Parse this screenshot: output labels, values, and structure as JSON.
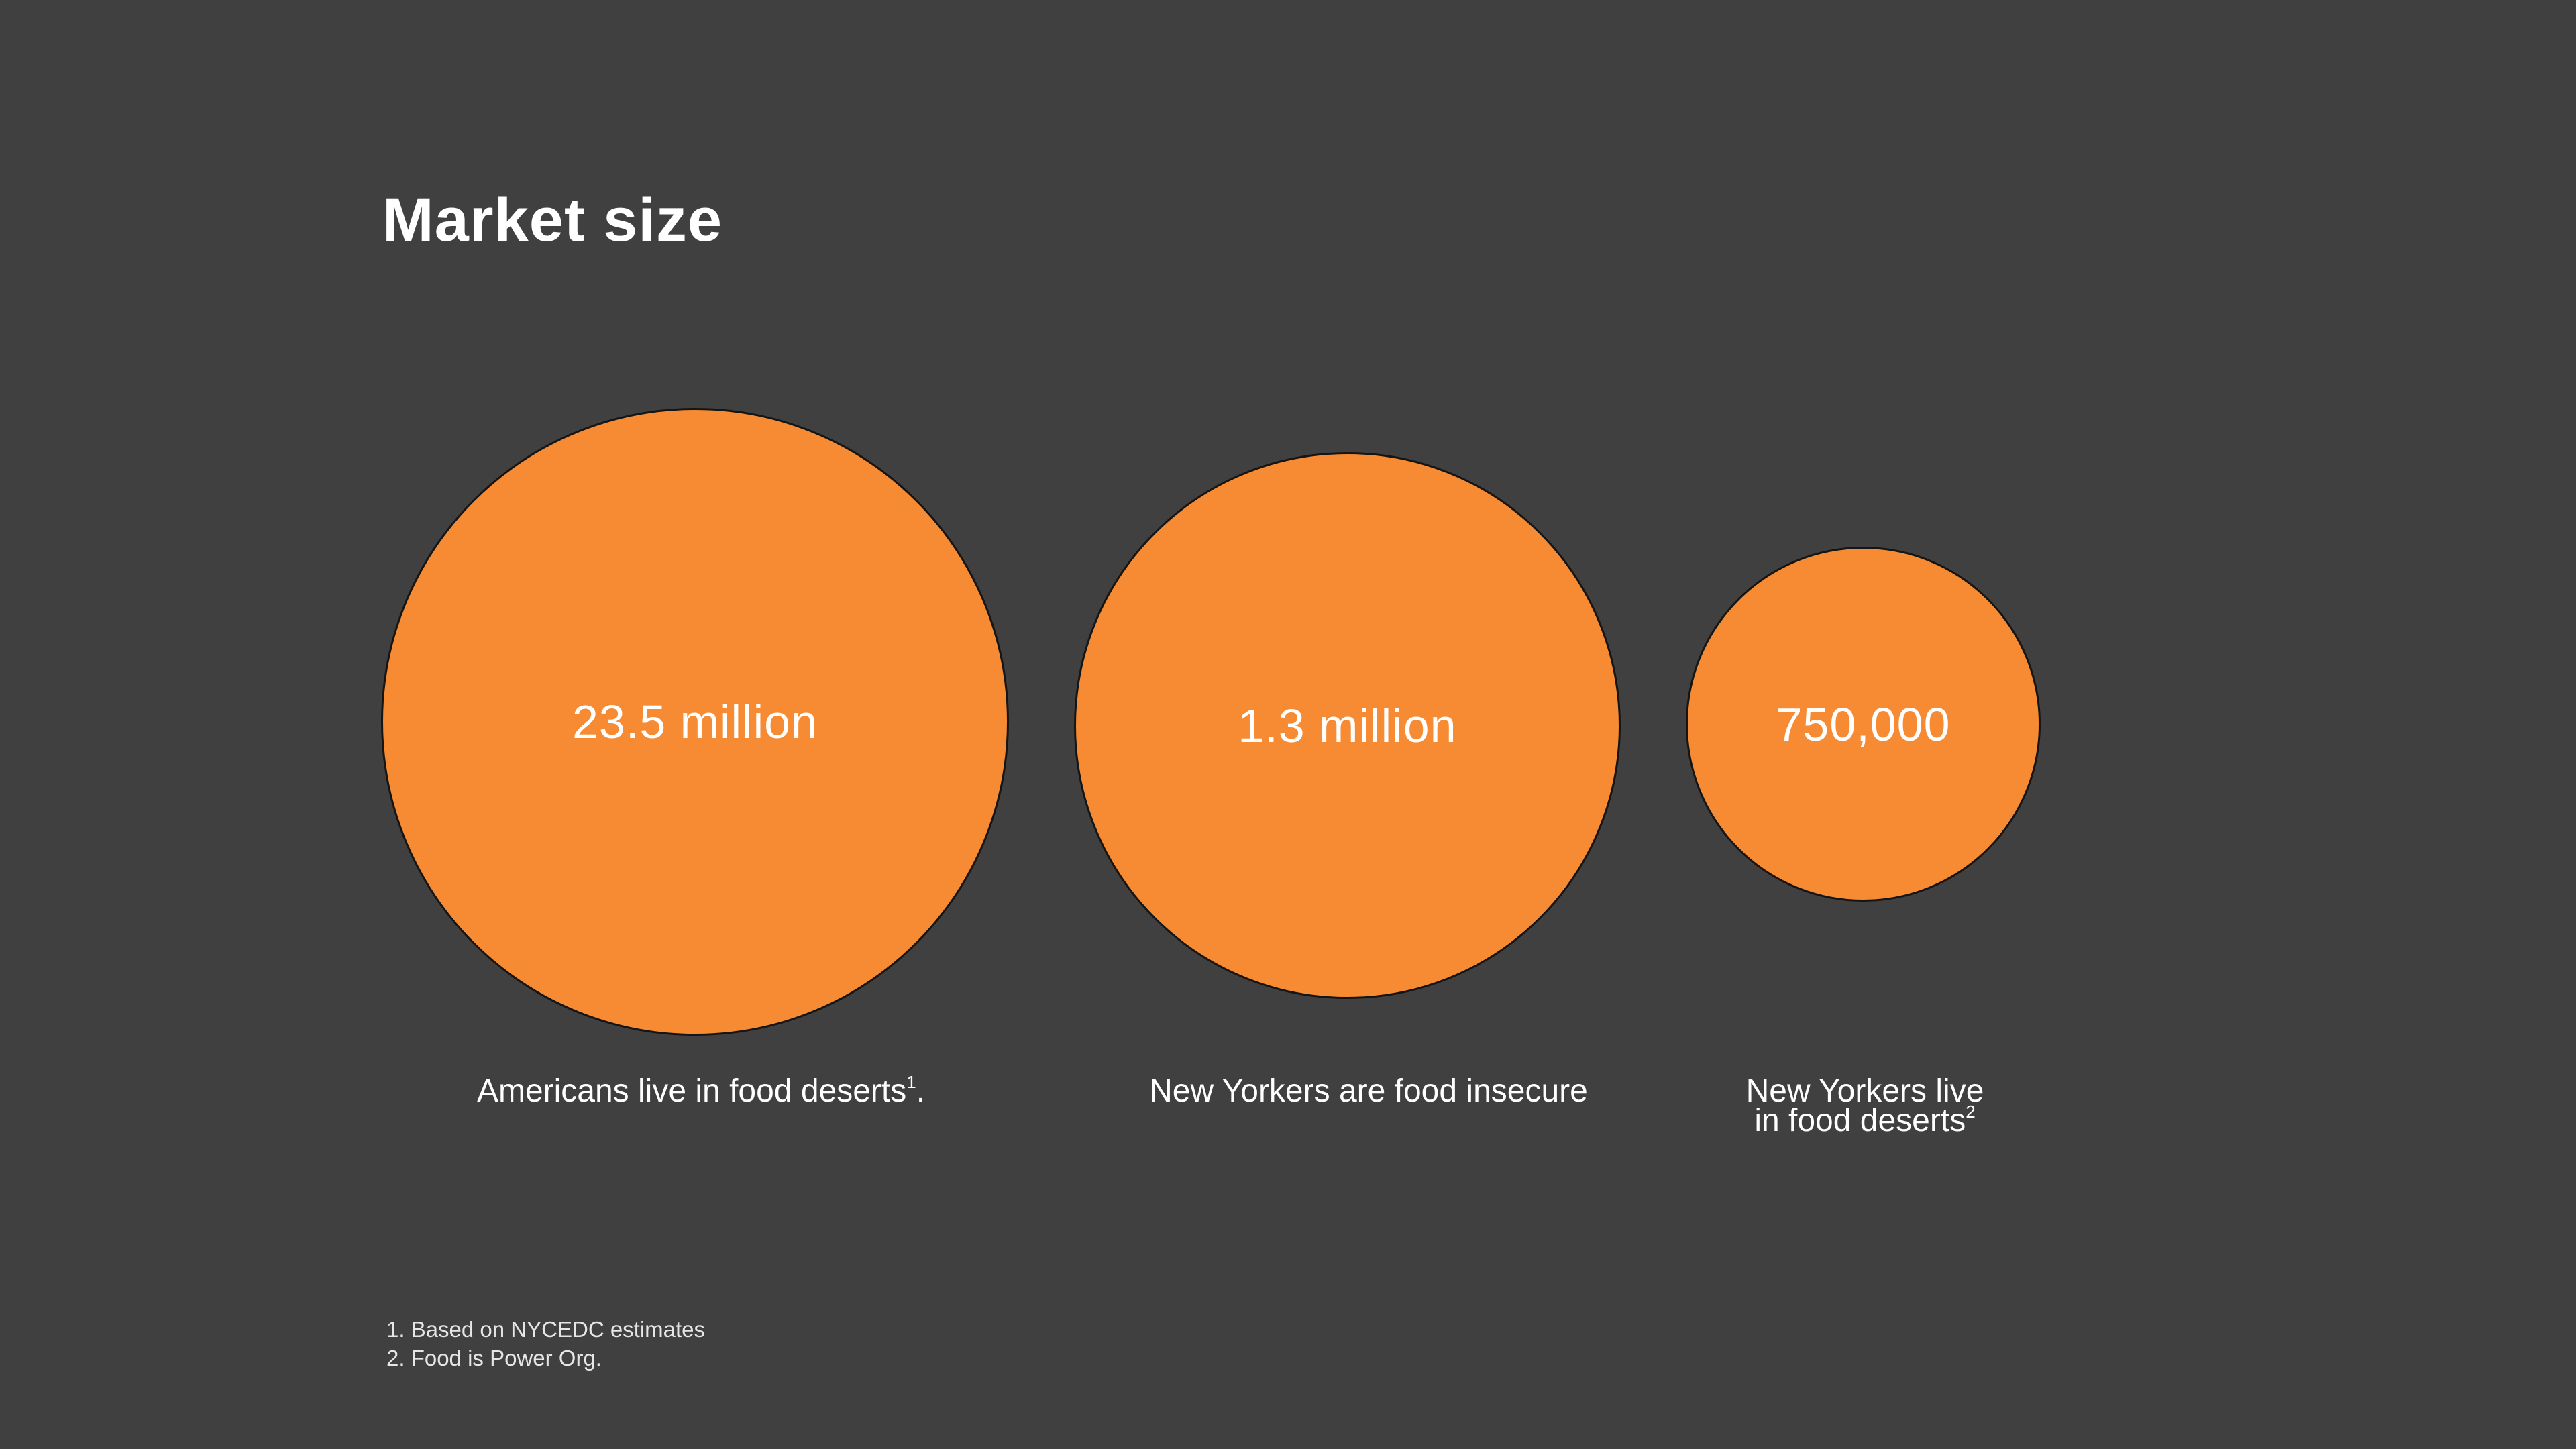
{
  "slide": {
    "title": "Market size",
    "colors": {
      "background": "#404040",
      "circle_fill": "#f68b33",
      "circle_stroke": "#151515",
      "text": "#ffffff"
    }
  },
  "stats": [
    {
      "value": "23.5 million",
      "caption": "Americans live in food deserts",
      "caption_sup": "1",
      "caption_tail": "."
    },
    {
      "value": "1.3 million",
      "caption": "New Yorkers are food insecure"
    },
    {
      "value": "750,000",
      "caption_line1": "New Yorkers live",
      "caption_line2": "in food deserts",
      "caption_sup": "2"
    }
  ],
  "footnotes": [
    "1. Based on NYCEDC estimates",
    "2. Food is Power Org."
  ]
}
